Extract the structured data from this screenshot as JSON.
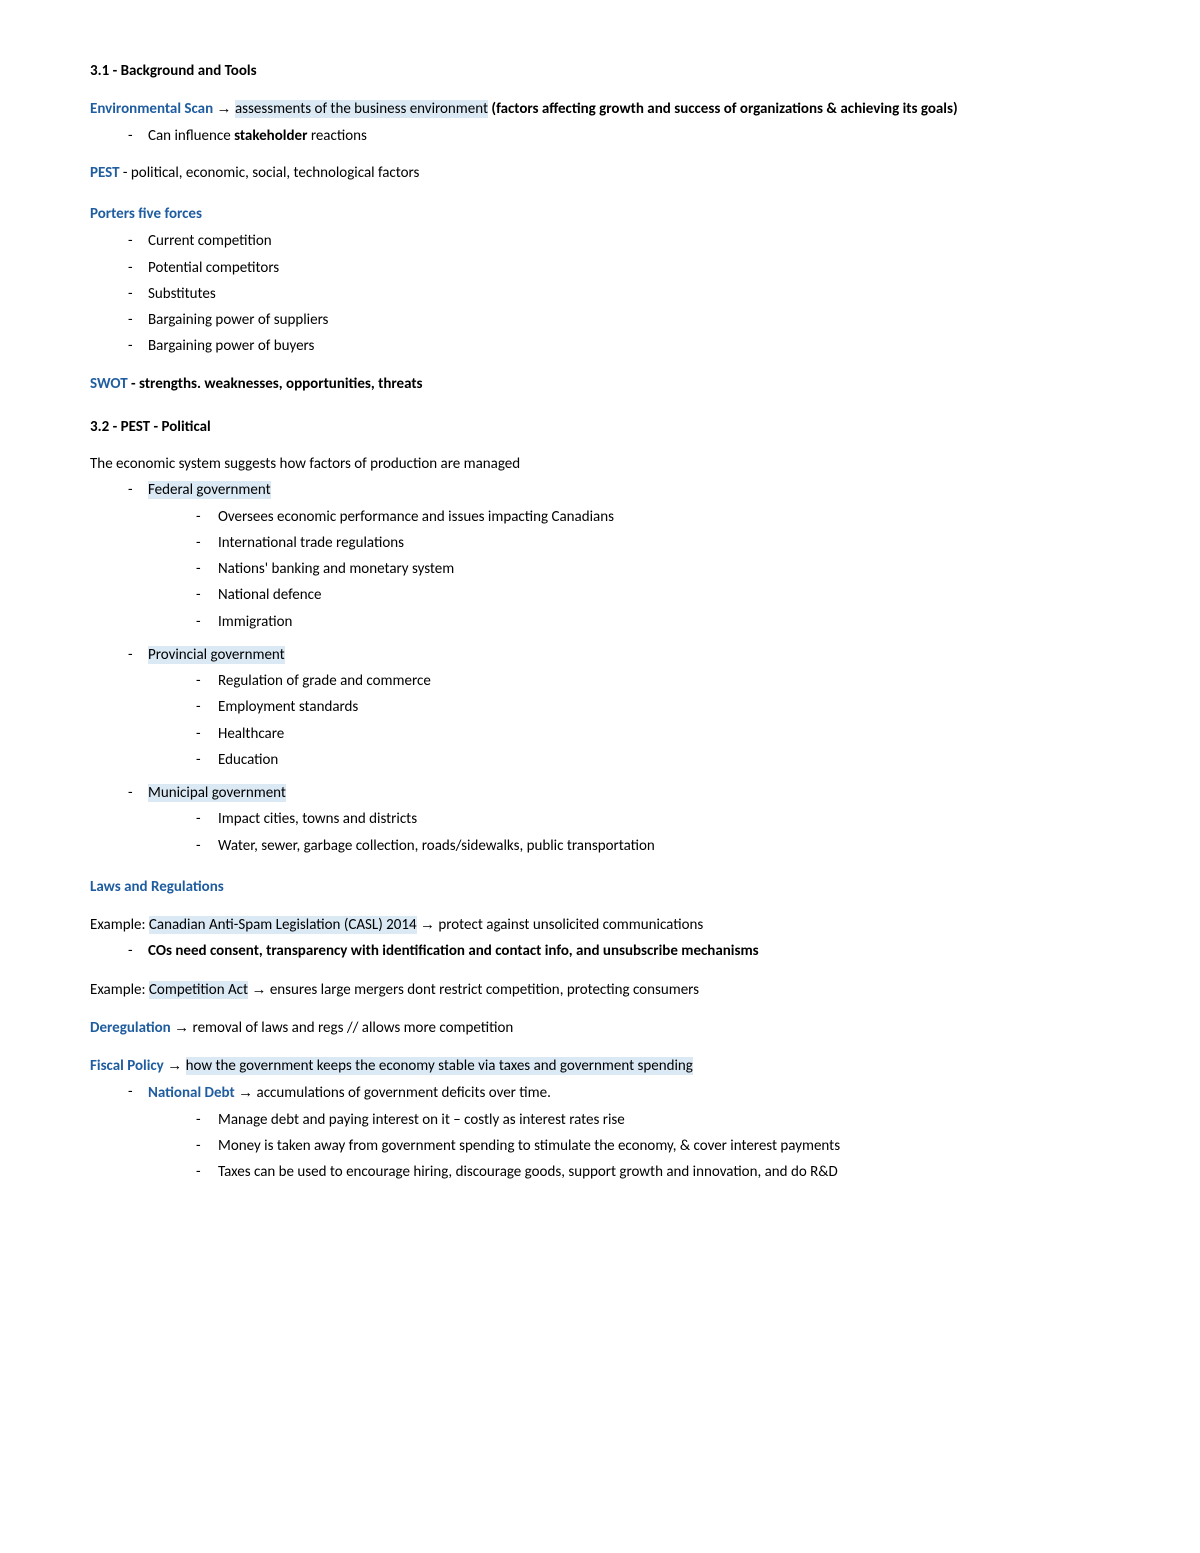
{
  "s31_title": "3.1 - Background and Tools",
  "env_scan_term": "Environmental Scan",
  "arrow": "→",
  "bold_arrow": "→",
  "env_scan_hl": "assessments of the business environment",
  "env_scan_rest": " (factors affecting growth and success of organizations & achieving its goals)",
  "env_bullet_pre": "Can influence ",
  "env_bullet_bold": "stakeholder",
  "env_bullet_post": " reactions",
  "pest_term": "PEST",
  "pest_def": " - political, economic, social, technological factors",
  "porters_head": "Porters five forces",
  "porters": {
    "0": "Current competition",
    "1": "Potential competitors",
    "2": " Substitutes",
    "3": "Bargaining power of suppliers",
    "4": "Bargaining power of buyers"
  },
  "swot_term": "SWOT",
  "swot_def": " - strengths. weaknesses, opportunities, threats",
  "s32_title": "3.2 - PEST - Political",
  "econ_intro": "The economic system suggests how factors of production are managed",
  "gov": {
    "fed": "Federal government",
    "fed_items": {
      "0": "Oversees economic performance and issues impacting Canadians",
      "1": "International trade regulations",
      "2": "Nations' banking and monetary system",
      "3": "National defence",
      "4": "Immigration"
    },
    "prov": "Provincial government",
    "prov_items": {
      "0": "Regulation of grade and commerce",
      "1": "Employment standards",
      "2": "Healthcare",
      "3": "Education"
    },
    "muni": "Municipal government",
    "muni_items": {
      "0": "Impact cities, towns and districts",
      "1": "Water, sewer, garbage collection, roads/sidewalks, public transportation"
    }
  },
  "laws_head": "Laws and Regulations",
  "casl_pre": "Example: ",
  "casl_hl": "Canadian Anti-Spam Legislation (CASL) 2014",
  "casl_post": " protect against unsolicited communications",
  "casl_bullet": "COs need consent, transparency with identification and contact info, and unsubscribe mechanisms",
  "comp_pre": "Example: ",
  "comp_hl": "Competition Act",
  "comp_post": " ensures large mergers dont restrict competition, protecting consumers",
  "dereg_term": "Deregulation",
  "dereg_def": " removal of laws and regs // allows more competition",
  "fiscal_term": "Fiscal Policy",
  "fiscal_hl": "how the government keeps the economy stable via taxes and government spending",
  "natdebt_term": "National Debt",
  "natdebt_def": " accumulations of government deficits over time.",
  "natdebt_items": {
    "0": "Manage debt and paying interest on it – costly as interest rates rise",
    "1": "Money is taken away from government spending to stimulate the economy, & cover interest payments",
    "2": "Taxes can be used to encourage hiring, discourage goods, support growth and innovation, and do R&D"
  }
}
